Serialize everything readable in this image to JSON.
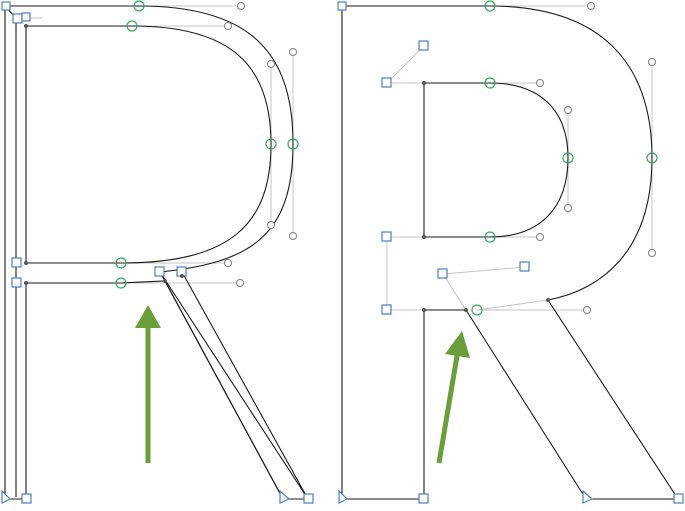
{
  "figure": {
    "glyph": "R",
    "panels": [
      {
        "id": "left",
        "description_label": ""
      },
      {
        "id": "right",
        "description_label": ""
      }
    ]
  },
  "colors": {
    "outline": "#1a1a1a",
    "handle_line": "#c4c4c4",
    "handle_knob": "#7c7c7c",
    "on_curve_point": "#3aa85e",
    "corner_point": "#4a7fc1",
    "arrow": "#6a9e3a"
  },
  "icons": {
    "on_curve": "circle-point-icon",
    "corner": "square-point-icon",
    "start": "triangle-start-icon",
    "off_curve": "small-circle-handle-icon",
    "arrow": "up-arrow-icon"
  }
}
